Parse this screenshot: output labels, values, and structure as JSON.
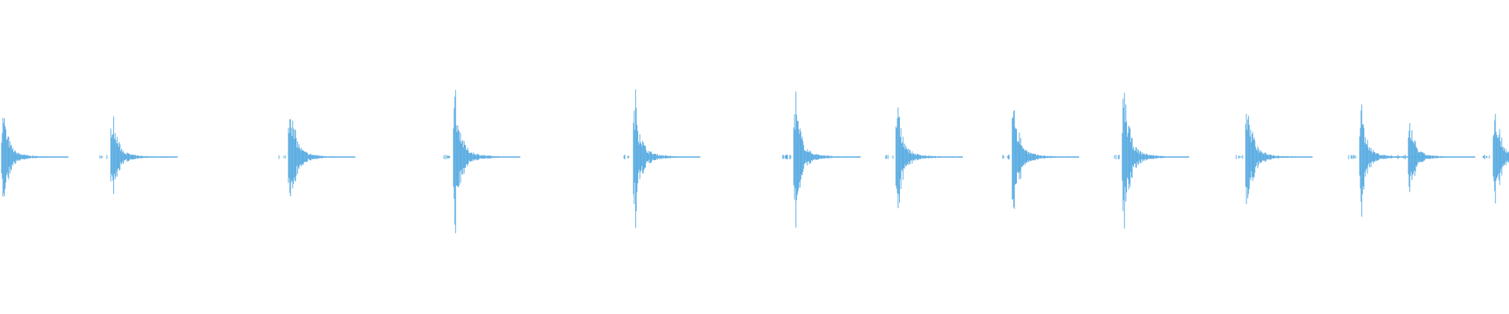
{
  "waveform": {
    "color": "#5dade2",
    "background": "#ffffff",
    "transient_count": 13,
    "peak_amplitudes": [
      0.34,
      0.32,
      0.43,
      0.49,
      0.44,
      0.44,
      0.39,
      0.42,
      0.52,
      0.43,
      0.35,
      0.25,
      0.41
    ]
  }
}
